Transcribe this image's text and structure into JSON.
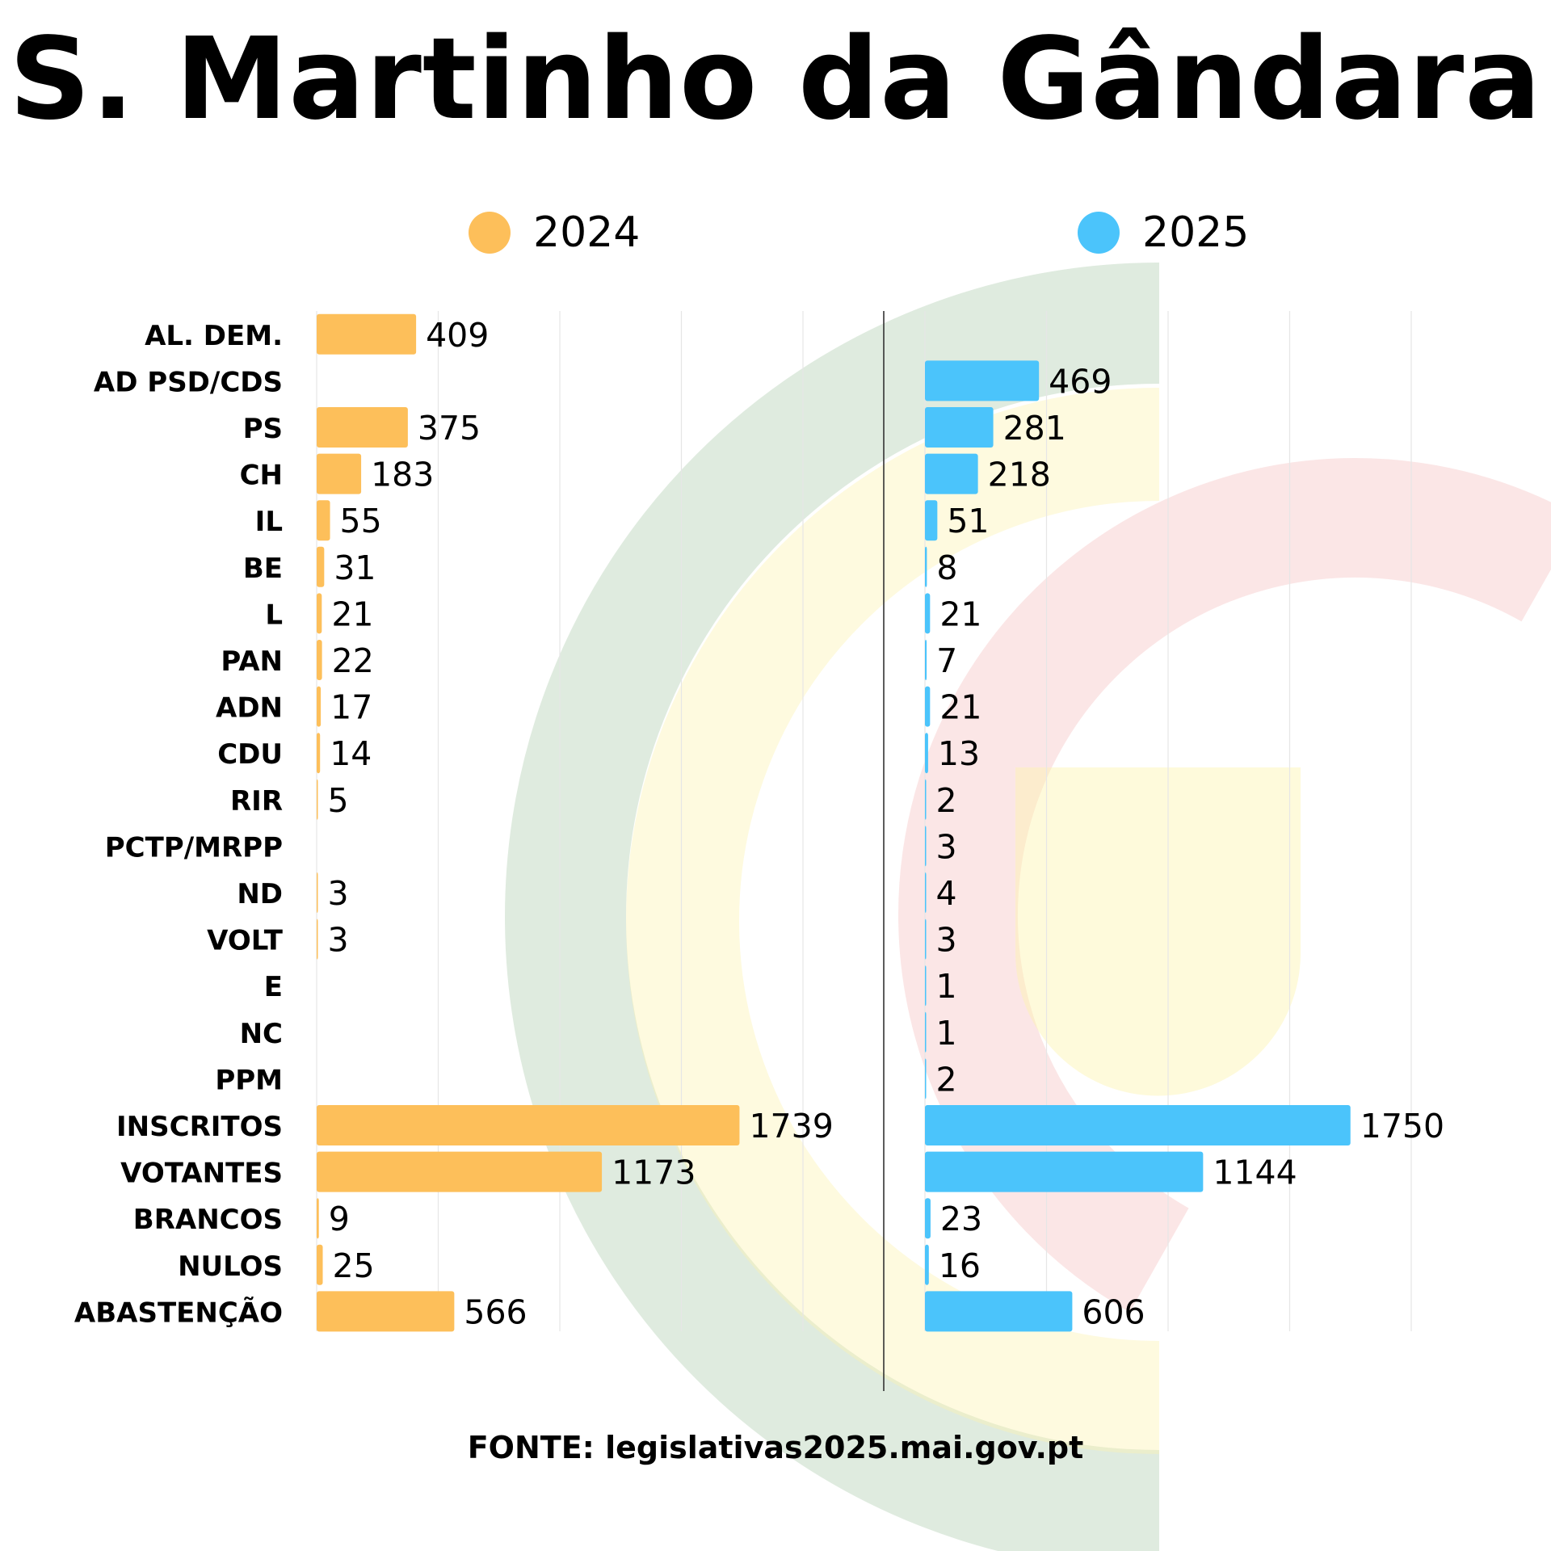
{
  "title": "S. Martinho da Gândara",
  "source": "FONTE: legislativas2025.mai.gov.pt",
  "colors": {
    "2024": "#fdbf5a",
    "2025": "#4bc4fb"
  },
  "chart_data": {
    "type": "bar",
    "orientation": "horizontal",
    "categories": [
      "AL. DEM.",
      "AD PSD/CDS",
      "PS",
      "CH",
      "IL",
      "BE",
      "L",
      "PAN",
      "ADN",
      "CDU",
      "RIR",
      "PCTP/MRPP",
      "ND",
      "VOLT",
      "E",
      "NC",
      "PPM",
      "INSCRITOS",
      "VOTANTES",
      "BRANCOS",
      "NULOS",
      "ABASTENÇÃO"
    ],
    "series": [
      {
        "name": "2024",
        "values": [
          409,
          null,
          375,
          183,
          55,
          31,
          21,
          22,
          17,
          14,
          5,
          null,
          3,
          3,
          null,
          null,
          null,
          1739,
          1173,
          9,
          25,
          566
        ]
      },
      {
        "name": "2025",
        "values": [
          null,
          469,
          281,
          218,
          51,
          8,
          21,
          7,
          21,
          13,
          2,
          3,
          4,
          3,
          1,
          1,
          2,
          1750,
          1144,
          23,
          16,
          606
        ]
      }
    ],
    "xlim": [
      0,
      2000
    ],
    "grid": true,
    "legend": "top",
    "layout": "two side-by-side panels, one per year, sharing category labels"
  }
}
